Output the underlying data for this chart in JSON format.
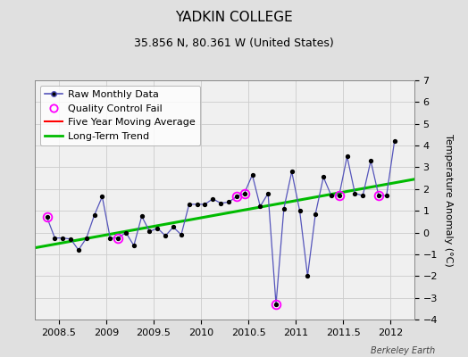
{
  "title": "YADKIN COLLEGE",
  "subtitle": "35.856 N, 80.361 W (United States)",
  "ylabel": "Temperature Anomaly (°C)",
  "footer": "Berkeley Earth",
  "xlim": [
    2008.25,
    2012.25
  ],
  "ylim": [
    -4,
    7
  ],
  "yticks": [
    -4,
    -3,
    -2,
    -1,
    0,
    1,
    2,
    3,
    4,
    5,
    6,
    7
  ],
  "xticks": [
    2008.5,
    2009.0,
    2009.5,
    2010.0,
    2010.5,
    2011.0,
    2011.5,
    2012.0
  ],
  "xtick_labels": [
    "2008.5",
    "2009",
    "2009.5",
    "2010",
    "2010.5",
    "2011",
    "2011.5",
    "2012"
  ],
  "raw_x": [
    2008.375,
    2008.458,
    2008.542,
    2008.625,
    2008.708,
    2008.792,
    2008.875,
    2008.958,
    2009.042,
    2009.125,
    2009.208,
    2009.292,
    2009.375,
    2009.458,
    2009.542,
    2009.625,
    2009.708,
    2009.792,
    2009.875,
    2009.958,
    2010.042,
    2010.125,
    2010.208,
    2010.292,
    2010.375,
    2010.458,
    2010.542,
    2010.625,
    2010.708,
    2010.792,
    2010.875,
    2010.958,
    2011.042,
    2011.125,
    2011.208,
    2011.292,
    2011.375,
    2011.458,
    2011.542,
    2011.625,
    2011.708,
    2011.792,
    2011.875,
    2011.958,
    2012.042
  ],
  "raw_y": [
    0.7,
    -0.25,
    -0.25,
    -0.3,
    -0.8,
    -0.25,
    0.8,
    1.65,
    -0.25,
    -0.25,
    0.0,
    -0.6,
    0.75,
    0.05,
    0.2,
    -0.15,
    0.25,
    -0.1,
    1.3,
    1.3,
    1.3,
    1.55,
    1.35,
    1.4,
    1.65,
    1.8,
    2.65,
    1.2,
    1.8,
    -3.3,
    1.1,
    2.8,
    1.0,
    -2.0,
    0.85,
    2.55,
    1.7,
    1.7,
    3.5,
    1.8,
    1.7,
    3.3,
    1.7,
    1.7,
    4.2
  ],
  "qc_x": [
    2008.375,
    2009.125,
    2010.375,
    2010.458,
    2010.792,
    2011.458,
    2011.875
  ],
  "qc_y": [
    0.7,
    -0.25,
    1.65,
    1.8,
    -3.3,
    1.7,
    1.7
  ],
  "trend_x": [
    2008.25,
    2012.25
  ],
  "trend_y": [
    -0.7,
    2.45
  ],
  "bg_color": "#e0e0e0",
  "plot_bg_color": "#f0f0f0",
  "raw_line_color": "#5555bb",
  "raw_marker_color": "#000000",
  "qc_marker_color": "#ff00ff",
  "ma_color": "#ff0000",
  "trend_color": "#00bb00",
  "title_fontsize": 11,
  "subtitle_fontsize": 9,
  "ylabel_fontsize": 8,
  "tick_fontsize": 8,
  "legend_fontsize": 8
}
